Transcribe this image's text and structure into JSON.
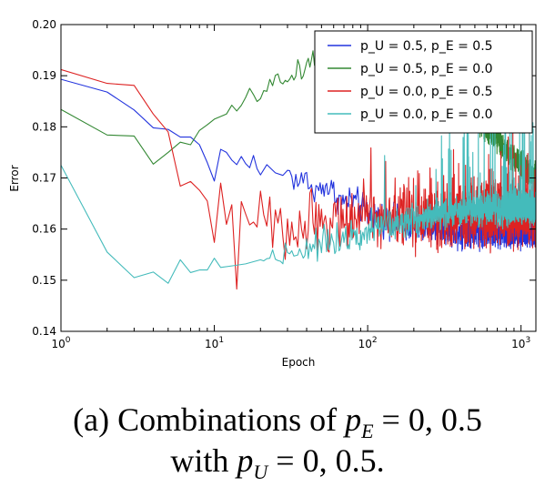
{
  "chart_data": {
    "type": "line",
    "xscale": "log",
    "xlim": [
      1,
      1250
    ],
    "ylim": [
      0.14,
      0.2
    ],
    "xlabel": "Epoch",
    "ylabel": "Error",
    "x_ticks": [
      1,
      10,
      100,
      1000
    ],
    "x_tick_labels": [
      {
        "base": "10",
        "exp": "0"
      },
      {
        "base": "10",
        "exp": "1"
      },
      {
        "base": "10",
        "exp": "2"
      },
      {
        "base": "10",
        "exp": "3"
      }
    ],
    "y_ticks": [
      "0.14",
      "0.15",
      "0.16",
      "0.17",
      "0.18",
      "0.19",
      "0.20"
    ],
    "legend_position": "top-right",
    "series": [
      {
        "name": "p_U = 0.5, p_E = 0.5",
        "color": "#2233dd",
        "points": [
          [
            1,
            0.1893
          ],
          [
            2,
            0.1868
          ],
          [
            3,
            0.1833
          ],
          [
            4,
            0.1798
          ],
          [
            5,
            0.1795
          ],
          [
            6,
            0.178
          ],
          [
            7,
            0.178
          ],
          [
            8,
            0.1765
          ],
          [
            9,
            0.173
          ],
          [
            10,
            0.1694
          ],
          [
            11,
            0.1756
          ],
          [
            12,
            0.175
          ],
          [
            13,
            0.1735
          ],
          [
            14,
            0.1726
          ],
          [
            15,
            0.1742
          ],
          [
            16,
            0.1728
          ],
          [
            17,
            0.172
          ],
          [
            18,
            0.1744
          ],
          [
            19,
            0.1718
          ],
          [
            20,
            0.1706
          ],
          [
            22,
            0.1726
          ],
          [
            25,
            0.171
          ],
          [
            28,
            0.1705
          ],
          [
            30,
            0.1715
          ],
          [
            35,
            0.169
          ],
          [
            40,
            0.17
          ],
          [
            45,
            0.1665
          ],
          [
            50,
            0.169
          ],
          [
            60,
            0.1672
          ],
          [
            70,
            0.165
          ],
          [
            80,
            0.1658
          ],
          [
            100,
            0.163
          ],
          [
            130,
            0.162
          ],
          [
            160,
            0.1612
          ],
          [
            200,
            0.1606
          ],
          [
            300,
            0.16
          ],
          [
            400,
            0.1598
          ],
          [
            600,
            0.1596
          ],
          [
            800,
            0.1594
          ],
          [
            1000,
            0.1595
          ],
          [
            1250,
            0.1596
          ]
        ],
        "noise_from": 30,
        "noise": 0.0022
      },
      {
        "name": "p_U = 0.5, p_E = 0.0",
        "color": "#338833",
        "points": [
          [
            1,
            0.1834
          ],
          [
            2,
            0.1784
          ],
          [
            3,
            0.1782
          ],
          [
            4,
            0.1727
          ],
          [
            5,
            0.175
          ],
          [
            6,
            0.177
          ],
          [
            7,
            0.1765
          ],
          [
            8,
            0.1793
          ],
          [
            9,
            0.1804
          ],
          [
            10,
            0.1815
          ],
          [
            12,
            0.1825
          ],
          [
            14,
            0.1832
          ],
          [
            16,
            0.1848
          ],
          [
            18,
            0.186
          ],
          [
            20,
            0.187
          ],
          [
            22,
            0.1878
          ],
          [
            25,
            0.1885
          ],
          [
            28,
            0.189
          ],
          [
            30,
            0.1888
          ],
          [
            33,
            0.1905
          ],
          [
            36,
            0.1915
          ],
          [
            40,
            0.192
          ],
          [
            45,
            0.1935
          ],
          [
            50,
            0.195
          ],
          [
            60,
            0.196
          ],
          [
            70,
            0.196
          ],
          [
            80,
            0.1955
          ],
          [
            100,
            0.1955
          ],
          [
            130,
            0.195
          ],
          [
            160,
            0.194
          ],
          [
            200,
            0.1925
          ],
          [
            250,
            0.19
          ],
          [
            300,
            0.188
          ],
          [
            400,
            0.185
          ],
          [
            500,
            0.182
          ],
          [
            600,
            0.1795
          ],
          [
            700,
            0.178
          ],
          [
            800,
            0.1755
          ],
          [
            1000,
            0.1725
          ],
          [
            1250,
            0.1705
          ]
        ],
        "noise_from": 12,
        "noise": 0.0018
      },
      {
        "name": "p_U = 0.0, p_E = 0.5",
        "color": "#dd2222",
        "points": [
          [
            1,
            0.1912
          ],
          [
            2,
            0.1885
          ],
          [
            3,
            0.1881
          ],
          [
            4,
            0.1825
          ],
          [
            5,
            0.179
          ],
          [
            6,
            0.1684
          ],
          [
            7,
            0.1693
          ],
          [
            8,
            0.1676
          ],
          [
            9,
            0.1655
          ],
          [
            10,
            0.1574
          ],
          [
            11,
            0.169
          ],
          [
            12,
            0.1596
          ],
          [
            13,
            0.165
          ],
          [
            14,
            0.153
          ],
          [
            15,
            0.163
          ],
          [
            16,
            0.161
          ],
          [
            18,
            0.1572
          ],
          [
            20,
            0.166
          ],
          [
            22,
            0.162
          ],
          [
            25,
            0.16
          ],
          [
            28,
            0.159
          ],
          [
            32,
            0.157
          ],
          [
            35,
            0.161
          ],
          [
            40,
            0.163
          ],
          [
            50,
            0.161
          ],
          [
            60,
            0.162
          ],
          [
            80,
            0.1618
          ],
          [
            100,
            0.1622
          ],
          [
            150,
            0.1625
          ],
          [
            200,
            0.163
          ],
          [
            300,
            0.163
          ],
          [
            400,
            0.1632
          ],
          [
            600,
            0.1635
          ],
          [
            800,
            0.1635
          ],
          [
            1000,
            0.1636
          ],
          [
            1250,
            0.1637
          ]
        ],
        "noise_from": 11,
        "noise": 0.0045,
        "spike_from": 100,
        "spike_rate": 0.04,
        "spike_max": 0.012
      },
      {
        "name": "p_U = 0.0, p_E = 0.0",
        "color": "#44bbbb",
        "points": [
          [
            1,
            0.1725
          ],
          [
            2,
            0.1555
          ],
          [
            3,
            0.1505
          ],
          [
            4,
            0.1516
          ],
          [
            5,
            0.1494
          ],
          [
            6,
            0.154
          ],
          [
            7,
            0.1515
          ],
          [
            8,
            0.152
          ],
          [
            9,
            0.152
          ],
          [
            10,
            0.1543
          ],
          [
            11,
            0.1525
          ],
          [
            13,
            0.1528
          ],
          [
            16,
            0.1532
          ],
          [
            20,
            0.154
          ],
          [
            25,
            0.1548
          ],
          [
            30,
            0.1555
          ],
          [
            40,
            0.1562
          ],
          [
            50,
            0.1572
          ],
          [
            60,
            0.158
          ],
          [
            80,
            0.1592
          ],
          [
            100,
            0.16
          ],
          [
            150,
            0.1612
          ],
          [
            200,
            0.1622
          ],
          [
            300,
            0.163
          ],
          [
            500,
            0.1636
          ],
          [
            700,
            0.1638
          ],
          [
            1000,
            0.164
          ],
          [
            1250,
            0.164
          ]
        ],
        "noise_from": 20,
        "noise": 0.0022,
        "spike_from": 110,
        "spike_rate": 0.05,
        "spike_max": 0.018
      }
    ]
  },
  "caption": {
    "line1_prefix": "(a) Combinations of ",
    "line1_math_var": "p",
    "line1_math_sub": "E",
    "line1_math_rest": " = 0, 0.5",
    "line2_prefix": "with ",
    "line2_math_var": "p",
    "line2_math_sub": "U",
    "line2_math_rest": " = 0, 0.5."
  }
}
